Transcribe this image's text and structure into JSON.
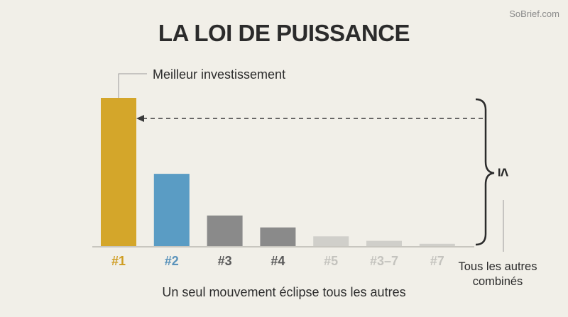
{
  "watermark": "SoBrief.com",
  "title": "LA LOI DE PUISSANCE",
  "caption": "Un seul mouvement éclipse tous les autres",
  "annotation_top": "Meilleur investissement",
  "side_label_line1": "Tous les autres",
  "side_label_line2": "combinés",
  "inequality_symbol": "≤",
  "chart_data": {
    "type": "bar",
    "title": "LA LOI DE PUISSANCE",
    "xlabel": "",
    "ylabel": "",
    "ylim": [
      0,
      100
    ],
    "grid": false,
    "categories": [
      "#1",
      "#2",
      "#3",
      "#4",
      "#5",
      "#3–7",
      "#7"
    ],
    "values": [
      100,
      49,
      21,
      13,
      7,
      4,
      2
    ],
    "colors": [
      "#d4a62a",
      "#5a9cc4",
      "#8a8a8a",
      "#8a8a8a",
      "#d0cfca",
      "#d0cfca",
      "#d0cfca"
    ],
    "label_colors": [
      "#cf9d22",
      "#5a93bb",
      "#5a5a5a",
      "#5a5a5a",
      "#c4c3be",
      "#c4c3be",
      "#c4c3be"
    ]
  }
}
